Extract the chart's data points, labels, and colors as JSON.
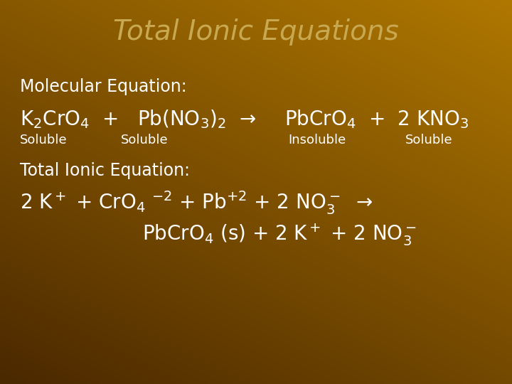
{
  "title": "Total Ionic Equations",
  "title_color": "#C8A850",
  "title_fontsize": 28,
  "bg_color_tl": "#4A2800",
  "bg_color_br": "#B07800",
  "text_color": "#FFFFFF",
  "mol_eq_label": "Molecular Equation:",
  "mol_eq_label_fontsize": 17,
  "total_eq_label": "Total Ionic Equation:",
  "total_eq_label_fontsize": 17,
  "eq_fontsize": 20,
  "small_fontsize": 13
}
